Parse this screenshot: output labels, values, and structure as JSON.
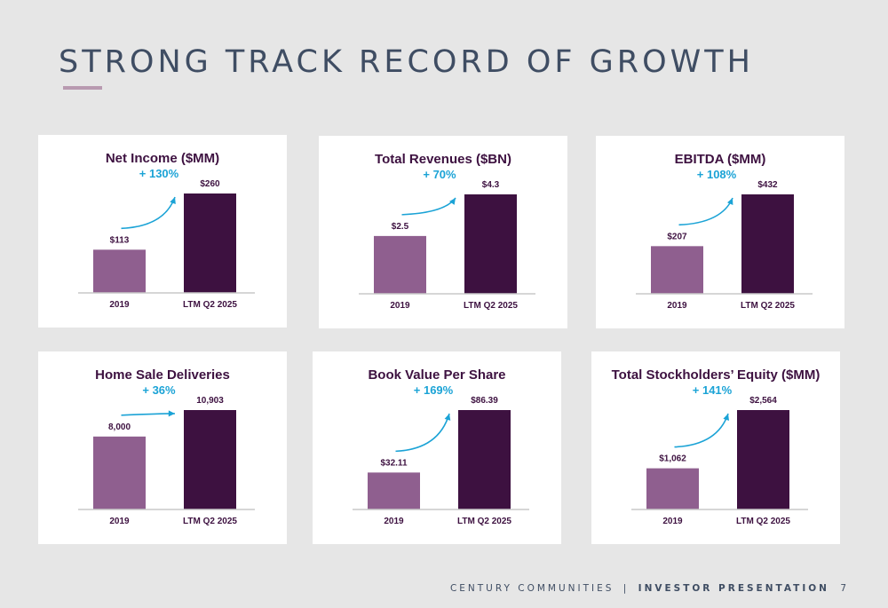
{
  "page": {
    "title": "STRONG TRACK RECORD OF GROWTH"
  },
  "footer": {
    "company": "CENTURY COMMUNITIES",
    "separator": "|",
    "doc": "INVESTOR PRESENTATION",
    "page_number": "7"
  },
  "colors": {
    "bar_2019": "#8f5f8f",
    "bar_ltm": "#3d1140",
    "title": "#3d1140",
    "growth": "#1ba3d6",
    "axis": "#c8c8c8"
  },
  "chart_data": [
    {
      "type": "bar",
      "title": "Net Income ($MM)",
      "growth": "+ 130%",
      "categories": [
        "2019",
        "LTM Q2 2025"
      ],
      "values": [
        113,
        260
      ],
      "labels": [
        "$113",
        "$260"
      ]
    },
    {
      "type": "bar",
      "title": "Total Revenues ($BN)",
      "growth": "+ 70%",
      "categories": [
        "2019",
        "LTM Q2 2025"
      ],
      "values": [
        2.5,
        4.3
      ],
      "labels": [
        "$2.5",
        "$4.3"
      ]
    },
    {
      "type": "bar",
      "title": "EBITDA ($MM)",
      "growth": "+ 108%",
      "categories": [
        "2019",
        "LTM Q2 2025"
      ],
      "values": [
        207,
        432
      ],
      "labels": [
        "$207",
        "$432"
      ]
    },
    {
      "type": "bar",
      "title": "Home Sale Deliveries",
      "growth": "+ 36%",
      "categories": [
        "2019",
        "LTM Q2 2025"
      ],
      "values": [
        8000,
        10903
      ],
      "labels": [
        "8,000",
        "10,903"
      ]
    },
    {
      "type": "bar",
      "title": "Book Value Per Share",
      "growth": "+ 169%",
      "categories": [
        "2019",
        "LTM Q2 2025"
      ],
      "values": [
        32.11,
        86.39
      ],
      "labels": [
        "$32.11",
        "$86.39"
      ]
    },
    {
      "type": "bar",
      "title": "Total Stockholders’ Equity ($MM)",
      "growth": "+ 141%",
      "categories": [
        "2019",
        "LTM Q2 2025"
      ],
      "values": [
        1062,
        2564
      ],
      "labels": [
        "$1,062",
        "$2,564"
      ]
    }
  ]
}
